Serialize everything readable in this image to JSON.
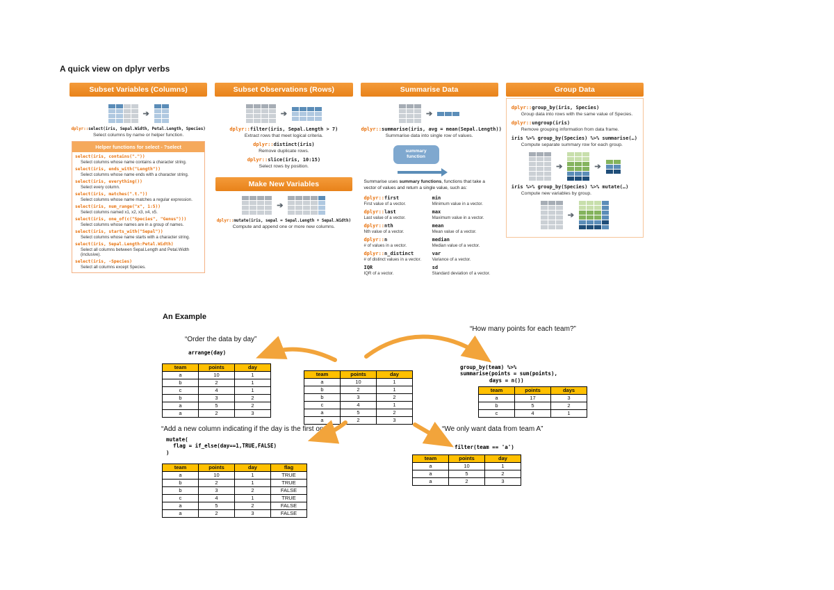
{
  "page": {
    "title": "A quick view on dplyr verbs"
  },
  "colors": {
    "header_orange": "#EE8A24",
    "helper_orange": "#F5A95C",
    "code_orange": "#E8700A",
    "table_header_gold": "#FFC000",
    "arrow_amber": "#F2A43B",
    "summary_blue": "#7FA8CF"
  },
  "panels": {
    "subset_variables": {
      "header": "Subset Variables (Columns)",
      "select": {
        "prefix": "dplyr::",
        "code": "select(iris, Sepal.Width, Petal.Length, Species)",
        "desc": "Select columns by name or helper function."
      },
      "helper_title": "Helper functions for select - ?select",
      "helpers": [
        {
          "code": "select(iris, contains(\".\"))",
          "desc": "Select columns whose name contains a character string."
        },
        {
          "code": "select(iris, ends_with(\"Length\"))",
          "desc": "Select columns whose name ends with a character string."
        },
        {
          "code": "select(iris, everything())",
          "desc": "Select every column."
        },
        {
          "code": "select(iris, matches(\".t.\"))",
          "desc": "Select columns whose name matches a regular expression."
        },
        {
          "code": "select(iris, num_range(\"x\", 1:5))",
          "desc": "Select columns named x1, x2, x3, x4, x5."
        },
        {
          "code": "select(iris, one_of(c(\"Species\", \"Genus\")))",
          "desc": "Select columns whose names are in a group of names."
        },
        {
          "code": "select(iris, starts_with(\"Sepal\"))",
          "desc": "Select columns whose name starts with a character string."
        },
        {
          "code": "select(iris, Sepal.Length:Petal.Width)",
          "desc": "Select all columns between Sepal.Length and Petal.Width (inclusive)."
        },
        {
          "code": "select(iris, -Species)",
          "desc": "Select all columns except Species."
        }
      ]
    },
    "subset_observations": {
      "header": "Subset Observations (Rows)",
      "items": [
        {
          "prefix": "dplyr::",
          "code": "filter(iris, Sepal.Length > 7)",
          "desc": "Extract rows that meet logical criteria."
        },
        {
          "prefix": "dplyr::",
          "code": "distinct(iris)",
          "desc": "Remove duplicate rows."
        },
        {
          "prefix": "dplyr::",
          "code": "slice(iris, 10:15)",
          "desc": "Select rows by position."
        }
      ]
    },
    "make_new_variables": {
      "header": "Make New Variables",
      "prefix": "dplyr::",
      "code": "mutate(iris, sepal = Sepal.Length + Sepal.Width)",
      "desc": "Compute and append one or more new columns."
    },
    "summarise_data": {
      "header": "Summarise Data",
      "prefix": "dplyr::",
      "code": "summarise(iris, avg = mean(Sepal.Length))",
      "desc": "Summarise data into single row of values.",
      "box_line1": "summary",
      "box_line2": "function",
      "intro_pre": "Summarise uses ",
      "intro_bold": "summary functions",
      "intro_post": ", functions that take a vector of values and return a single value, such as:",
      "functions_left": [
        {
          "prefix": "dplyr::",
          "name": "first",
          "desc": "First value of a vector."
        },
        {
          "prefix": "dplyr::",
          "name": "last",
          "desc": "Last value of a vector."
        },
        {
          "prefix": "dplyr::",
          "name": "nth",
          "desc": "Nth value of a vector."
        },
        {
          "prefix": "dplyr::",
          "name": "n",
          "desc": "# of values in a vector."
        },
        {
          "prefix": "dplyr::",
          "name": "n_distinct",
          "desc": "# of distinct values in a vector."
        },
        {
          "prefix": "",
          "name": "IQR",
          "desc": "IQR of a vector."
        }
      ],
      "functions_right": [
        {
          "prefix": "",
          "name": "min",
          "desc": "Minimum value in a vector."
        },
        {
          "prefix": "",
          "name": "max",
          "desc": "Maximum value in a vector."
        },
        {
          "prefix": "",
          "name": "mean",
          "desc": "Mean value of a vector."
        },
        {
          "prefix": "",
          "name": "median",
          "desc": "Median value of a vector."
        },
        {
          "prefix": "",
          "name": "var",
          "desc": "Variance of a vector."
        },
        {
          "prefix": "",
          "name": "sd",
          "desc": "Standard deviation of a vector."
        }
      ]
    },
    "group_data": {
      "header": "Group Data",
      "items": [
        {
          "prefix": "dplyr::",
          "code": "group_by(iris, Species)",
          "desc": "Group data into rows with the same value of Species."
        },
        {
          "prefix": "dplyr::",
          "code": "ungroup(iris)",
          "desc": "Remove grouping information from data frame."
        },
        {
          "prefix": "",
          "code": "iris %>% group_by(Species) %>% summarise(…)",
          "desc": "Compute separate summary row for each group."
        },
        {
          "prefix": "",
          "code": "iris %>% group_by(Species) %>% mutate(…)",
          "desc": "Compute new variables by group."
        }
      ]
    }
  },
  "example": {
    "heading": "An Example",
    "arrange": {
      "quote": "“Order the data by day”",
      "code": "arrange(day)"
    },
    "summarise": {
      "quote": "“How many points for each team?”",
      "code_lines": [
        "group_by(team) %>%",
        "summarise(points = sum(points),",
        "days = n())"
      ]
    },
    "mutate": {
      "quote": "“Add a new column indicating if the day is the first one”",
      "code_lines": [
        "mutate(",
        "flag = if_else(day==1,TRUE,FALSE)",
        ")"
      ]
    },
    "filter": {
      "quote": "“We only want data from team A”",
      "code": "filter(team == 'a')"
    },
    "tables": {
      "arranged": {
        "headers": [
          "team",
          "points",
          "day"
        ],
        "rows": [
          [
            "a",
            "10",
            "1"
          ],
          [
            "b",
            "2",
            "1"
          ],
          [
            "c",
            "4",
            "1"
          ],
          [
            "b",
            "3",
            "2"
          ],
          [
            "a",
            "5",
            "2"
          ],
          [
            "a",
            "2",
            "3"
          ]
        ]
      },
      "original": {
        "headers": [
          "team",
          "points",
          "day"
        ],
        "rows": [
          [
            "a",
            "10",
            "1"
          ],
          [
            "b",
            "2",
            "1"
          ],
          [
            "b",
            "3",
            "2"
          ],
          [
            "c",
            "4",
            "1"
          ],
          [
            "a",
            "5",
            "2"
          ],
          [
            "a",
            "2",
            "3"
          ]
        ]
      },
      "summary": {
        "headers": [
          "team",
          "points",
          "days"
        ],
        "rows": [
          [
            "a",
            "17",
            "3"
          ],
          [
            "b",
            "5",
            "2"
          ],
          [
            "c",
            "4",
            "1"
          ]
        ]
      },
      "flagged": {
        "headers": [
          "team",
          "points",
          "day",
          "flag"
        ],
        "rows": [
          [
            "a",
            "10",
            "1",
            "TRUE"
          ],
          [
            "b",
            "2",
            "1",
            "TRUE"
          ],
          [
            "b",
            "3",
            "2",
            "FALSE"
          ],
          [
            "c",
            "4",
            "1",
            "TRUE"
          ],
          [
            "a",
            "5",
            "2",
            "FALSE"
          ],
          [
            "a",
            "2",
            "3",
            "FALSE"
          ]
        ]
      },
      "filtered": {
        "headers": [
          "team",
          "points",
          "day"
        ],
        "rows": [
          [
            "a",
            "10",
            "1"
          ],
          [
            "a",
            "5",
            "2"
          ],
          [
            "a",
            "2",
            "3"
          ]
        ]
      }
    }
  }
}
